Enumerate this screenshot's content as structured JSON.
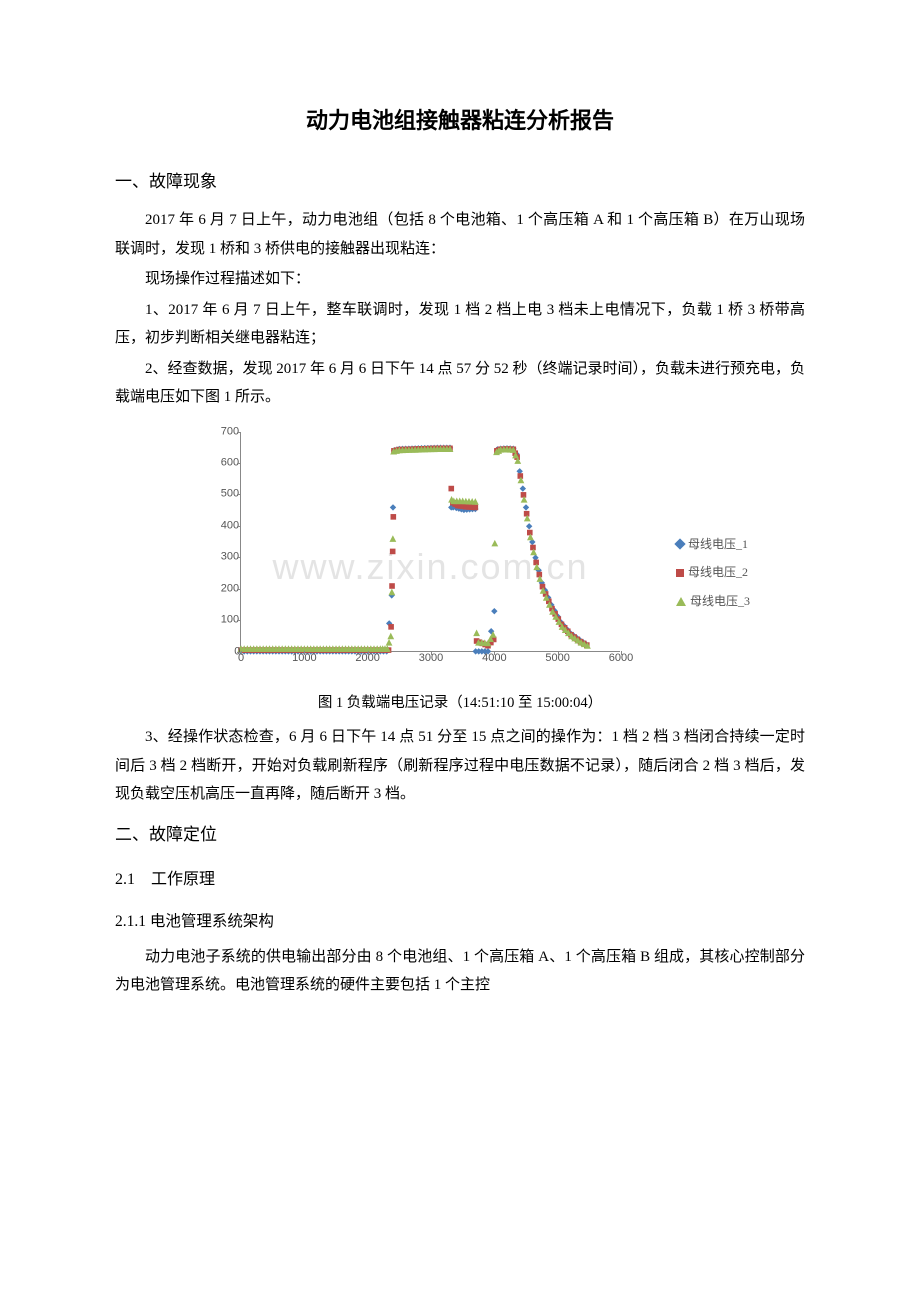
{
  "title": "动力电池组接触器粘连分析报告",
  "s1": {
    "heading": "一、故障现象",
    "p1": "2017 年 6 月 7 日上午，动力电池组（包括 8 个电池箱、1 个高压箱 A 和 1 个高压箱 B）在万山现场联调时，发现 1 桥和 3 桥供电的接触器出现粘连：",
    "p2": "现场操作过程描述如下：",
    "p3": "1、2017 年 6 月 7 日上午，整车联调时，发现 1 档 2 档上电 3 档未上电情况下，负载 1 桥 3 桥带高压，初步判断相关继电器粘连；",
    "p4": "2、经查数据，发现 2017 年 6 月 6 日下午 14 点 57 分 52 秒（终端记录时间），负载未进行预充电，负载端电压如下图 1 所示。",
    "p5": "3、经操作状态检查，6 月 6 日下午 14 点 51 分至 15 点之间的操作为：1 档 2 档 3 档闭合持续一定时间后 3 档 2 档断开，开始对负载刷新程序（刷新程序过程中电压数据不记录），随后闭合 2 档 3 档后，发现负载空压机高压一直再降，随后断开 3 档。"
  },
  "chart": {
    "caption": "图 1  负载端电压记录（14:51:10 至 15:00:04）",
    "watermark": "www.zixin.com.cn",
    "xlim": [
      0,
      6000
    ],
    "ylim": [
      0,
      700
    ],
    "xtick_step": 1000,
    "ytick_step": 100,
    "grid_color": "#888888",
    "background": "#ffffff",
    "legend": [
      {
        "label": "母线电压_1",
        "color": "#4a7ebb",
        "marker": "diamond"
      },
      {
        "label": "母线电压_2",
        "color": "#be4b48",
        "marker": "square"
      },
      {
        "label": "母线电压_3",
        "color": "#9abb59",
        "marker": "triangle"
      }
    ],
    "series": {
      "v1": {
        "color": "#4a7ebb",
        "marker": "diamond",
        "points": [
          [
            0,
            2
          ],
          [
            500,
            2
          ],
          [
            1000,
            2
          ],
          [
            1500,
            2
          ],
          [
            2000,
            2
          ],
          [
            2300,
            2
          ],
          [
            2380,
            180
          ],
          [
            2400,
            460
          ],
          [
            2420,
            642
          ],
          [
            2500,
            646
          ],
          [
            2800,
            648
          ],
          [
            3100,
            650
          ],
          [
            3300,
            650
          ],
          [
            3320,
            460
          ],
          [
            3350,
            460
          ],
          [
            3400,
            458
          ],
          [
            3520,
            452
          ],
          [
            3700,
            455
          ],
          [
            3705,
            2
          ],
          [
            3900,
            2
          ],
          [
            4000,
            130
          ],
          [
            4050,
            645
          ],
          [
            4100,
            647
          ],
          [
            4200,
            648
          ],
          [
            4300,
            647
          ],
          [
            4350,
            630
          ],
          [
            4450,
            520
          ],
          [
            4550,
            400
          ],
          [
            4650,
            300
          ],
          [
            4750,
            220
          ],
          [
            4900,
            150
          ],
          [
            5050,
            95
          ],
          [
            5200,
            60
          ],
          [
            5350,
            38
          ],
          [
            5450,
            25
          ]
        ]
      },
      "v2": {
        "color": "#be4b48",
        "marker": "square",
        "points": [
          [
            0,
            6
          ],
          [
            500,
            6
          ],
          [
            1000,
            6
          ],
          [
            1500,
            6
          ],
          [
            2000,
            6
          ],
          [
            2250,
            6
          ],
          [
            2330,
            6
          ],
          [
            2370,
            80
          ],
          [
            2385,
            210
          ],
          [
            2395,
            320
          ],
          [
            2405,
            430
          ],
          [
            2415,
            640
          ],
          [
            2500,
            644
          ],
          [
            2800,
            646
          ],
          [
            3100,
            648
          ],
          [
            3300,
            648
          ],
          [
            3320,
            520
          ],
          [
            3345,
            475
          ],
          [
            3420,
            466
          ],
          [
            3550,
            462
          ],
          [
            3700,
            460
          ],
          [
            3720,
            35
          ],
          [
            3900,
            20
          ],
          [
            3990,
            40
          ],
          [
            4040,
            640
          ],
          [
            4100,
            645
          ],
          [
            4200,
            646
          ],
          [
            4300,
            645
          ],
          [
            4360,
            620
          ],
          [
            4460,
            500
          ],
          [
            4560,
            380
          ],
          [
            4660,
            285
          ],
          [
            4760,
            208
          ],
          [
            4910,
            138
          ],
          [
            5060,
            88
          ],
          [
            5210,
            55
          ],
          [
            5360,
            33
          ],
          [
            5460,
            22
          ]
        ]
      },
      "v3": {
        "color": "#9abb59",
        "marker": "triangle",
        "points": [
          [
            0,
            10
          ],
          [
            500,
            10
          ],
          [
            1000,
            10
          ],
          [
            1500,
            10
          ],
          [
            2000,
            10
          ],
          [
            2200,
            10
          ],
          [
            2310,
            10
          ],
          [
            2365,
            50
          ],
          [
            2382,
            190
          ],
          [
            2398,
            360
          ],
          [
            2410,
            638
          ],
          [
            2500,
            642
          ],
          [
            2800,
            644
          ],
          [
            3100,
            646
          ],
          [
            3300,
            646
          ],
          [
            3325,
            485
          ],
          [
            3360,
            480
          ],
          [
            3500,
            480
          ],
          [
            3700,
            478
          ],
          [
            3720,
            60
          ],
          [
            3750,
            30
          ],
          [
            3900,
            28
          ],
          [
            3980,
            55
          ],
          [
            4035,
            636
          ],
          [
            4100,
            644
          ],
          [
            4200,
            645
          ],
          [
            4300,
            643
          ],
          [
            4370,
            608
          ],
          [
            4470,
            485
          ],
          [
            4570,
            365
          ],
          [
            4670,
            270
          ],
          [
            4770,
            195
          ],
          [
            4920,
            128
          ],
          [
            5070,
            80
          ],
          [
            5220,
            50
          ],
          [
            5370,
            30
          ],
          [
            5470,
            20
          ]
        ]
      }
    }
  },
  "s2": {
    "heading": "二、故障定位",
    "h2": "2.1　工作原理",
    "h3": "2.1.1  电池管理系统架构",
    "p1": "动力电池子系统的供电输出部分由 8 个电池组、1 个高压箱 A、1 个高压箱 B 组成，其核心控制部分为电池管理系统。电池管理系统的硬件主要包括 1 个主控"
  }
}
